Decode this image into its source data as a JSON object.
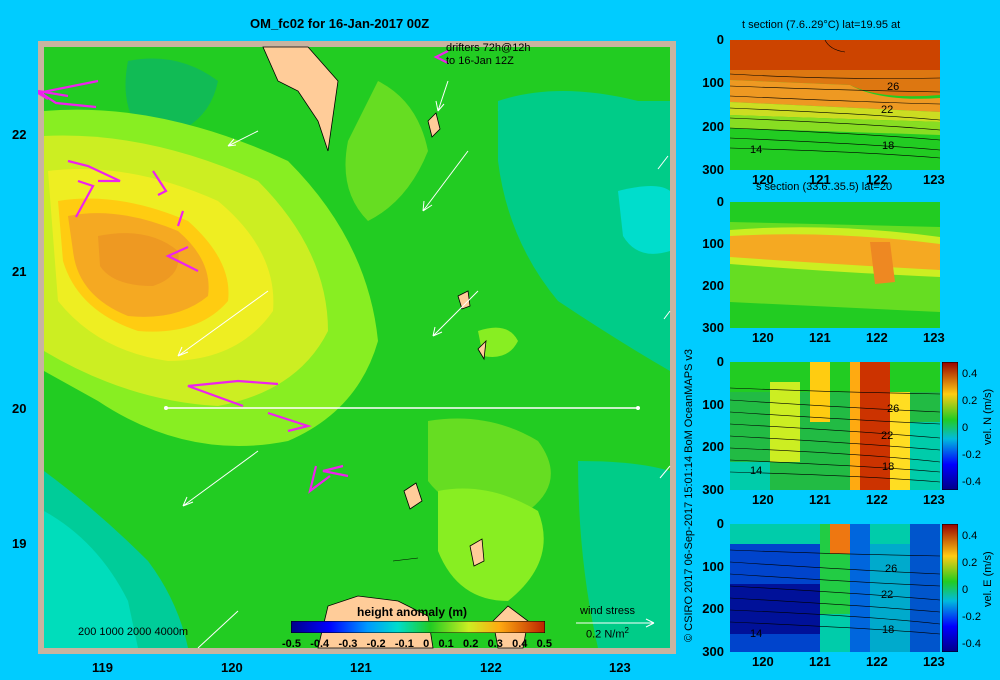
{
  "main_map": {
    "title": "OM_fc02 for 16-Jan-2017 00Z",
    "drifters_label_line1": "drifters 72h@12h",
    "drifters_label_line2": "to 16-Jan 12Z",
    "depth_legend": "200  1000  2000  4000m",
    "colorbar_title": "height anomaly  (m)",
    "colorbar_ticks": [
      "-0.5",
      "-0.4",
      "-0.3",
      "-0.2",
      "-0.1",
      "0",
      "0.1",
      "0.2",
      "0.3",
      "0.4",
      "0.5"
    ],
    "wind_label": "wind stress",
    "wind_scale_label": "0.2 N/m",
    "wind_scale_exp": "2",
    "x_ticks": [
      "119",
      "120",
      "121",
      "122",
      "123"
    ],
    "y_ticks": [
      "22",
      "21",
      "20",
      "19"
    ],
    "credit": "© CSIRO 2017   06-Sep-2017 15:01:14 BoM OceanMAPS v3"
  },
  "chart_data": [
    {
      "type": "heatmap",
      "title": "OM_fc02 for 16-Jan-2017 00Z",
      "x_ticks": [
        119,
        120,
        121,
        122,
        123
      ],
      "y_ticks": [
        19,
        20,
        21,
        22
      ],
      "xlim": [
        118.5,
        123.5
      ],
      "ylim": [
        18.3,
        22.7
      ],
      "colorbar": {
        "label": "height anomaly  (m)",
        "range": [
          -0.5,
          0.5
        ]
      },
      "section_line": {
        "lat": 20,
        "lon": [
          119.5,
          123.05
        ]
      }
    },
    {
      "type": "heatmap",
      "title": "t section (7.6..29°C) lat=19.95 at",
      "x_ticks": [
        120,
        121,
        122,
        123
      ],
      "y_ticks": [
        0,
        100,
        200,
        300
      ],
      "contour_labels": [
        "26",
        "22",
        "18",
        "14"
      ]
    },
    {
      "type": "heatmap",
      "title": "s section (33.6..35.5) lat=20",
      "x_ticks": [
        120,
        121,
        122,
        123
      ],
      "y_ticks": [
        0,
        100,
        200,
        300
      ]
    },
    {
      "type": "heatmap",
      "x_ticks": [
        120,
        121,
        122,
        123
      ],
      "y_ticks": [
        0,
        100,
        200,
        300
      ],
      "contour_labels": [
        "26",
        "22",
        "18",
        "14"
      ],
      "colorbar": {
        "label": "vel. N  (m/s)",
        "ticks": [
          "0.4",
          "0.2",
          "0",
          "-0.2",
          "-0.4"
        ]
      }
    },
    {
      "type": "heatmap",
      "x_ticks": [
        120,
        121,
        122,
        123
      ],
      "y_ticks": [
        0,
        100,
        200,
        300
      ],
      "contour_labels": [
        "26",
        "22",
        "18",
        "14"
      ],
      "colorbar": {
        "label": "vel. E  (m/s)",
        "ticks": [
          "0.4",
          "0.2",
          "0",
          "-0.2",
          "-0.4"
        ]
      }
    }
  ],
  "panels": {
    "t_title": "t section (7.6..29°C) lat=19.95 at",
    "s_title": "s section (33.6..35.5) lat=20",
    "vn_label": "vel. N  (m/s)",
    "ve_label": "vel. E  (m/s)",
    "x_ticks": [
      "120",
      "121",
      "122",
      "123"
    ],
    "y_ticks": [
      "0",
      "100",
      "200",
      "300"
    ],
    "contour_labels": [
      "26",
      "22",
      "18",
      "14"
    ],
    "cb_ticks": [
      "0.4",
      "0.2",
      "0",
      "-0.2",
      "-0.4"
    ]
  }
}
